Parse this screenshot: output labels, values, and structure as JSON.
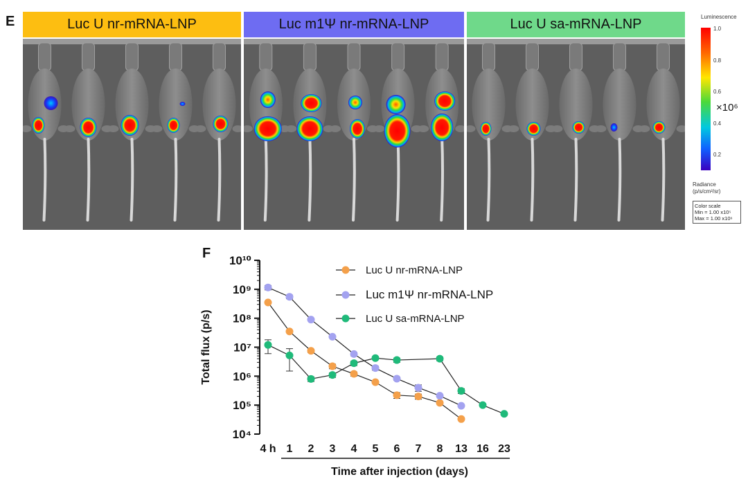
{
  "panel_e": {
    "letter": "E",
    "groups": [
      {
        "label": "Luc U nr-mRNA-LNP",
        "color": "#FDBE11"
      },
      {
        "label": "Luc m1Ψ nr-mRNA-LNP",
        "color": "#6E6CF2"
      },
      {
        "label": "Luc U sa-mRNA-LNP",
        "color": "#6FD98A"
      }
    ],
    "colorbar": {
      "title": "Luminescence",
      "ticks": [
        "1.0",
        "0.8",
        "0.6",
        "0.4",
        "0.2"
      ],
      "exponent": "×10⁶",
      "radiance_label": "Radiance",
      "radiance_units": "(p/s/cm²/sr)",
      "scale_title": "Color scale",
      "scale_min": "Min = 1.00 x10⁵",
      "scale_max": "Max = 1.00 x10⁶"
    }
  },
  "chart_data": {
    "panel_letter": "F",
    "type": "line",
    "y_scale": "log",
    "ylim": [
      10000,
      10000000000
    ],
    "ylabel": "Total flux (p/s)",
    "xlabel": "Time after injection (days)",
    "y_tick_labels": [
      "10⁴",
      "10⁵",
      "10⁶",
      "10⁷",
      "10⁸",
      "10⁹",
      "10¹⁰"
    ],
    "categories": [
      "4 h",
      "1",
      "2",
      "3",
      "4",
      "5",
      "6",
      "7",
      "8",
      "13",
      "16",
      "23"
    ],
    "series": [
      {
        "name": "Luc U nr-mRNA-LNP",
        "color": "#F4A04A",
        "values": [
          350000000,
          35000000,
          7500000,
          2200000,
          1200000,
          620000,
          220000,
          200000,
          120000,
          33000,
          null,
          null
        ],
        "errors": [
          0,
          0,
          1000000,
          400000,
          200000,
          0,
          50000,
          40000,
          0,
          0,
          null,
          null
        ]
      },
      {
        "name": "Luc m1Ψ nr-mRNA-LNP",
        "color": "#A3A2F0",
        "values": [
          1150000000,
          550000000,
          90000000,
          23000000,
          5800000,
          1900000,
          820000,
          400000,
          210000,
          95000,
          null,
          null
        ],
        "errors": [
          200000000,
          80000000,
          0,
          0,
          800000,
          300000,
          100000,
          100000,
          0,
          0,
          null,
          null
        ]
      },
      {
        "name": "Luc U sa-mRNA-LNP",
        "color": "#1FBA7A",
        "values": [
          12000000,
          5200000,
          800000,
          1100000,
          2800000,
          4200000,
          3600000,
          null,
          4000000,
          310000,
          100000,
          50000
        ],
        "errors": [
          6000000,
          3700000,
          150000,
          200000,
          500000,
          500000,
          600000,
          null,
          600000,
          60000,
          0,
          0
        ]
      }
    ]
  }
}
